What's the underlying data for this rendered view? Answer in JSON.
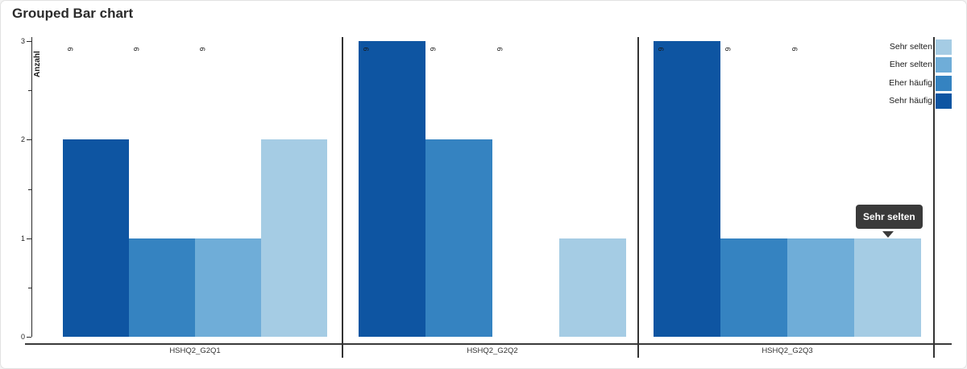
{
  "page": {
    "title": "Grouped Bar chart"
  },
  "chart_data": {
    "type": "bar",
    "title": "Grouped Bar chart",
    "xlabel": "",
    "ylabel": "Anzahl",
    "ylim": [
      0,
      3
    ],
    "yticks_major": [
      0,
      1,
      2,
      3
    ],
    "yticks_minor": [
      0.5,
      1.5,
      2.5
    ],
    "grid": false,
    "categories": [
      "HSHQ2_G2Q1",
      "HSHQ2_G2Q2",
      "HSHQ2_G2Q3"
    ],
    "series": [
      {
        "name": "Sehr häufig",
        "color": "#0e55a2",
        "values": [
          2,
          3,
          3
        ]
      },
      {
        "name": "Eher häufig",
        "color": "#3583c1",
        "values": [
          1,
          2,
          1
        ]
      },
      {
        "name": "Eher selten",
        "color": "#6fadd8",
        "values": [
          1,
          0,
          1
        ]
      },
      {
        "name": "Sehr selten",
        "color": "#a5cce4",
        "values": [
          2,
          1,
          1
        ]
      }
    ],
    "legend": {
      "position": "top-right",
      "items": [
        "Sehr selten",
        "Eher selten",
        "Eher häufig",
        "Sehr häufig"
      ]
    },
    "bar_top_label": {
      "text": "6",
      "rotation_deg": 90,
      "shown_on_first_n_bars_per_group": 3
    },
    "tooltip": {
      "text": "Sehr selten",
      "category": "HSHQ2_G2Q3",
      "series": "Sehr selten"
    }
  }
}
